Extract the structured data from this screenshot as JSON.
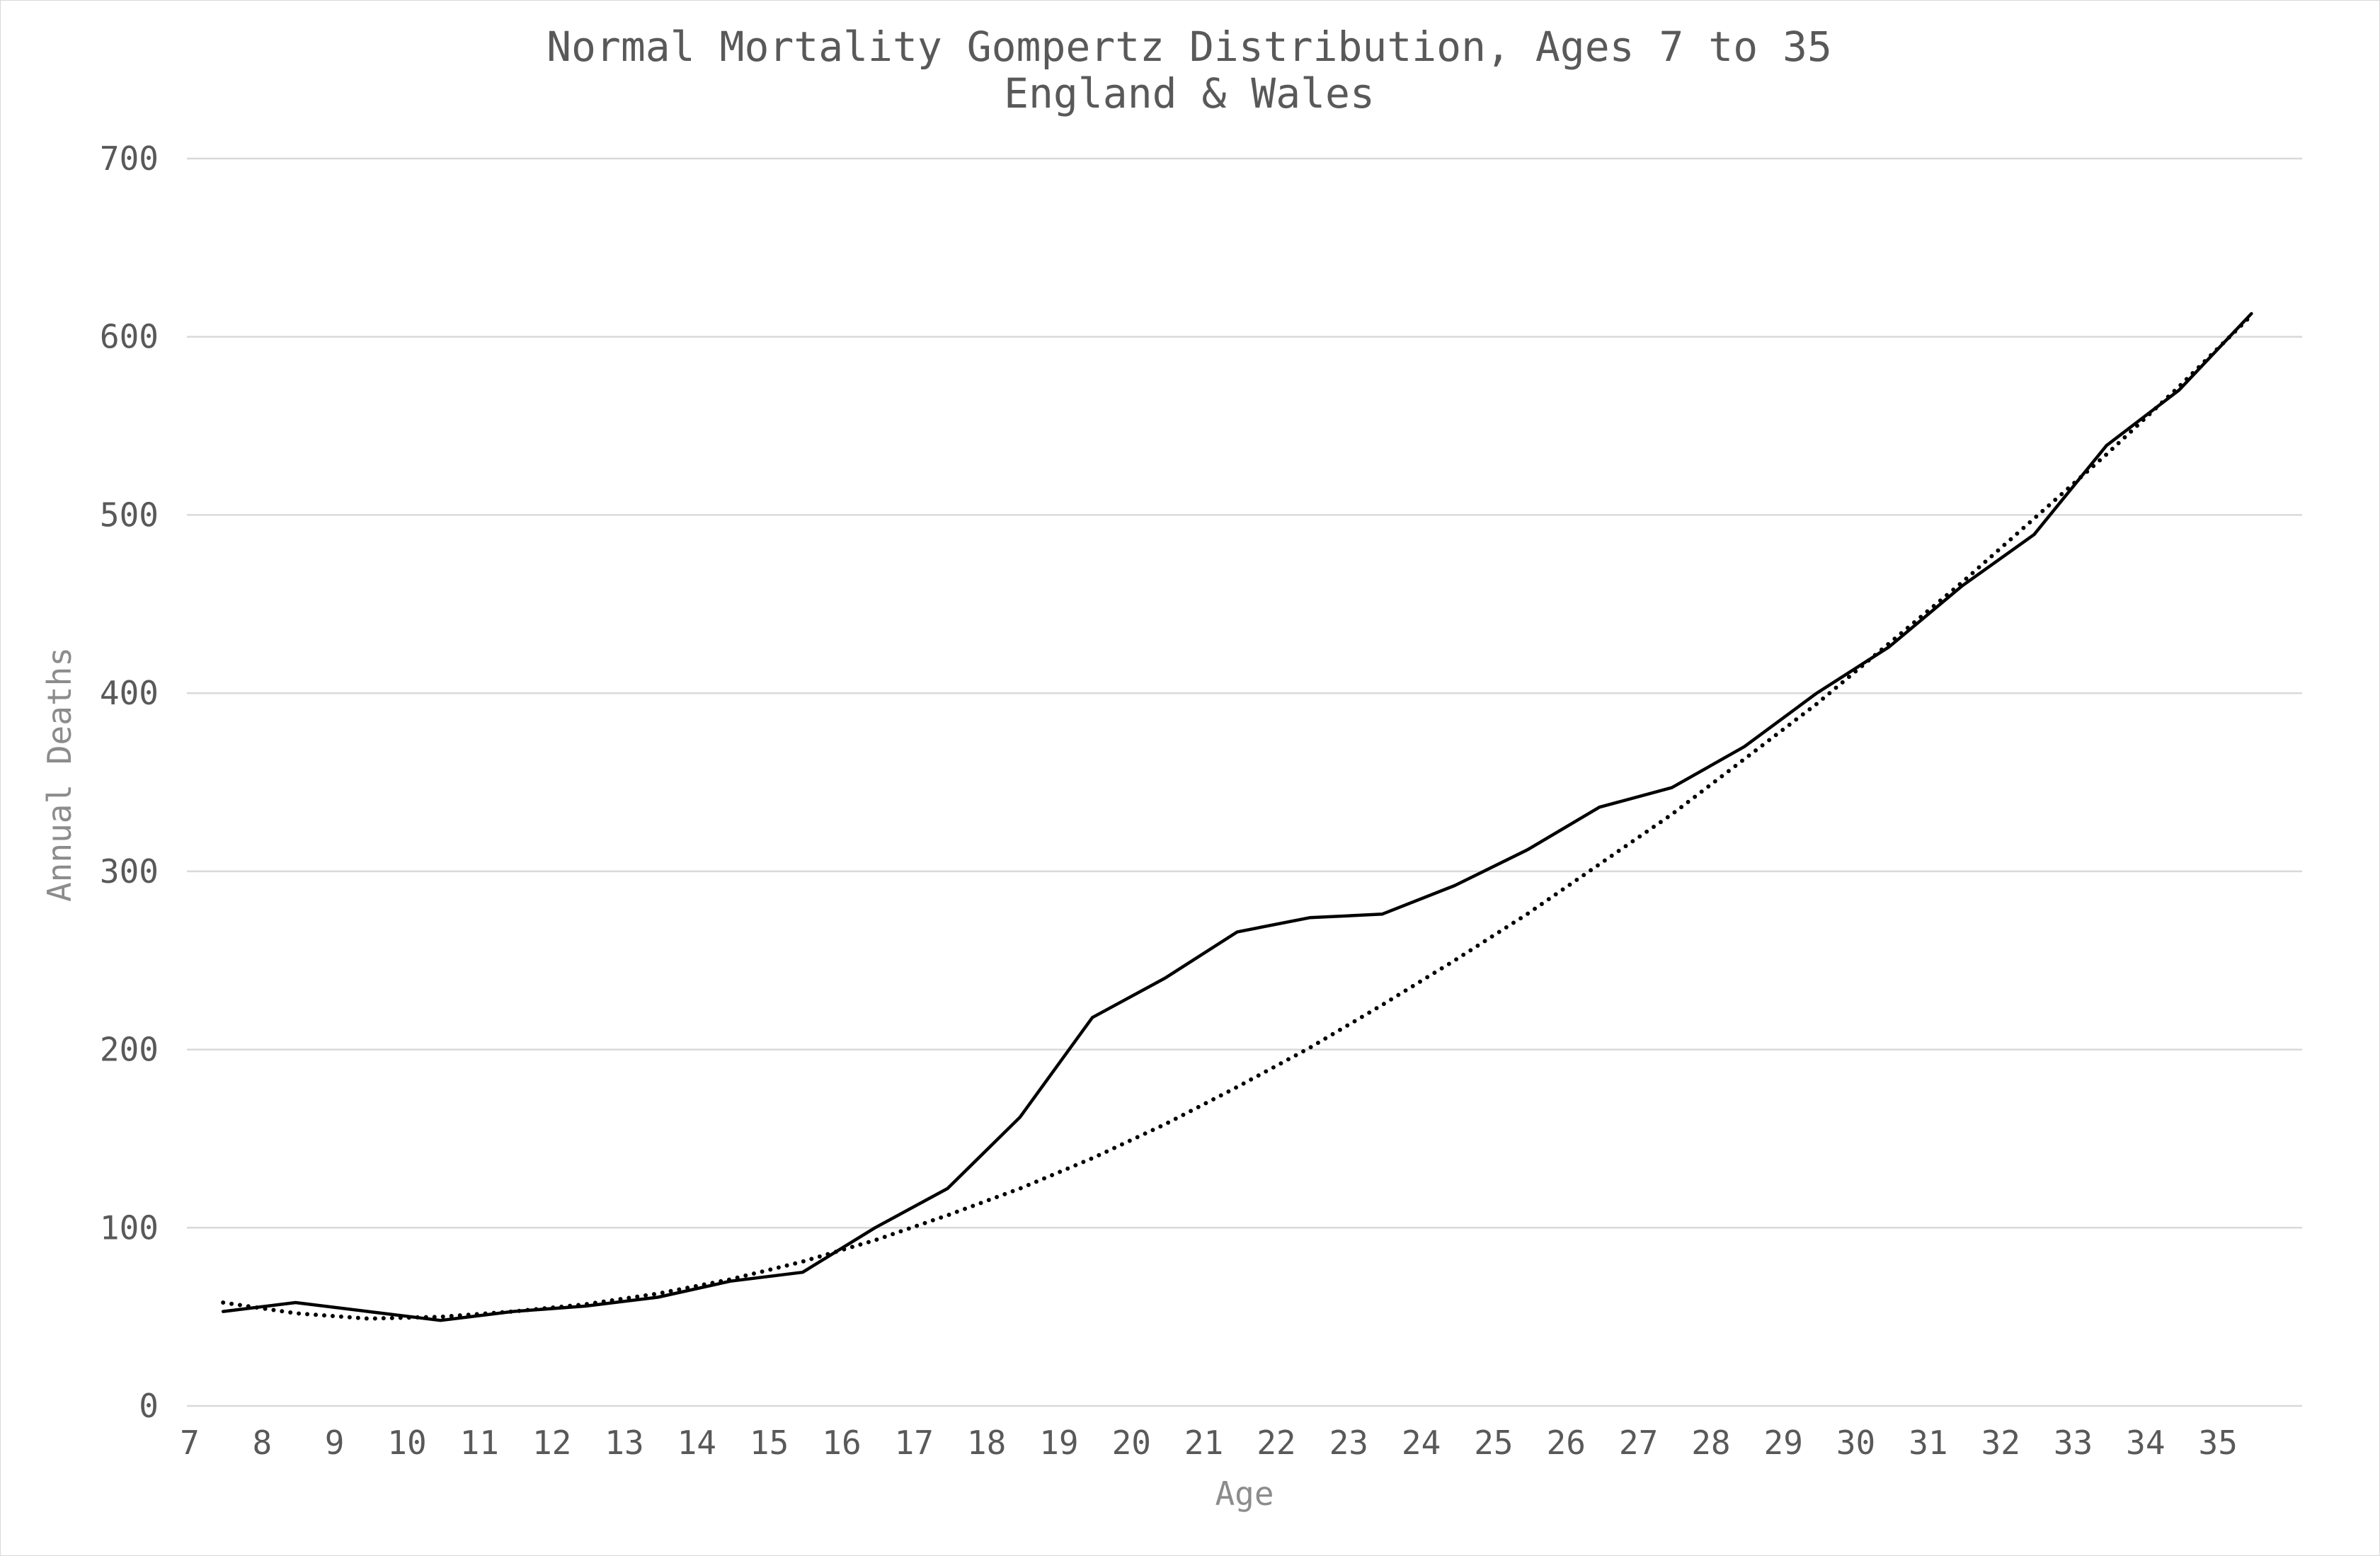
{
  "chart_data": {
    "type": "line",
    "title": "Normal Mortality Gompertz Distribution, Ages 7 to 35",
    "subtitle": "England & Wales",
    "xlabel": "Age",
    "ylabel": "Annual Deaths",
    "x_ticks": [
      "7",
      "8",
      "9",
      "10",
      "11",
      "12",
      "13",
      "14",
      "15",
      "16",
      "17",
      "18",
      "19",
      "20",
      "21",
      "22",
      "23",
      "24",
      "25",
      "26",
      "27",
      "28",
      "29",
      "30",
      "31",
      "32",
      "33",
      "34",
      "35"
    ],
    "y_ticks": [
      0,
      100,
      200,
      300,
      400,
      500,
      600,
      700
    ],
    "ylim": [
      0,
      700
    ],
    "grid": true,
    "legend": "none",
    "series": [
      {
        "style": "solid",
        "color": "#000000",
        "x": [
          7.5,
          8.5,
          9.5,
          10.5,
          11.5,
          12.5,
          13.5,
          14.5,
          15.5,
          16.5,
          17.5,
          18.5,
          19.5,
          20.5,
          21.5,
          22.5,
          23.5,
          24.5,
          25.5,
          26.5,
          27.5,
          28.5,
          29.5,
          30.5,
          31.5,
          32.5,
          33.5,
          34.5,
          35.5
        ],
        "y": [
          53,
          58,
          53,
          48,
          53,
          56,
          61,
          70,
          75,
          100,
          122,
          162,
          218,
          240,
          266,
          274,
          276,
          292,
          312,
          336,
          347,
          370,
          400,
          426,
          460,
          489,
          539,
          570,
          613
        ]
      },
      {
        "style": "dotted",
        "color": "#000000",
        "x": [
          7.5,
          8.5,
          9.5,
          10.5,
          11.5,
          12.5,
          13.5,
          14.5,
          15.5,
          16.5,
          17.5,
          18.5,
          19.5,
          20.5,
          21.5,
          22.5,
          23.5,
          24.5,
          25.5,
          26.5,
          27.5,
          28.5,
          29.5,
          30.5,
          31.5,
          32.5,
          33.5,
          34.5,
          35.5
        ],
        "y": [
          58,
          52,
          49,
          50,
          53,
          57,
          63,
          71,
          81,
          93,
          107,
          122,
          139,
          158,
          179,
          201,
          225,
          250,
          276,
          304,
          332,
          363,
          394,
          428,
          462,
          498,
          534,
          572,
          612
        ]
      }
    ]
  }
}
